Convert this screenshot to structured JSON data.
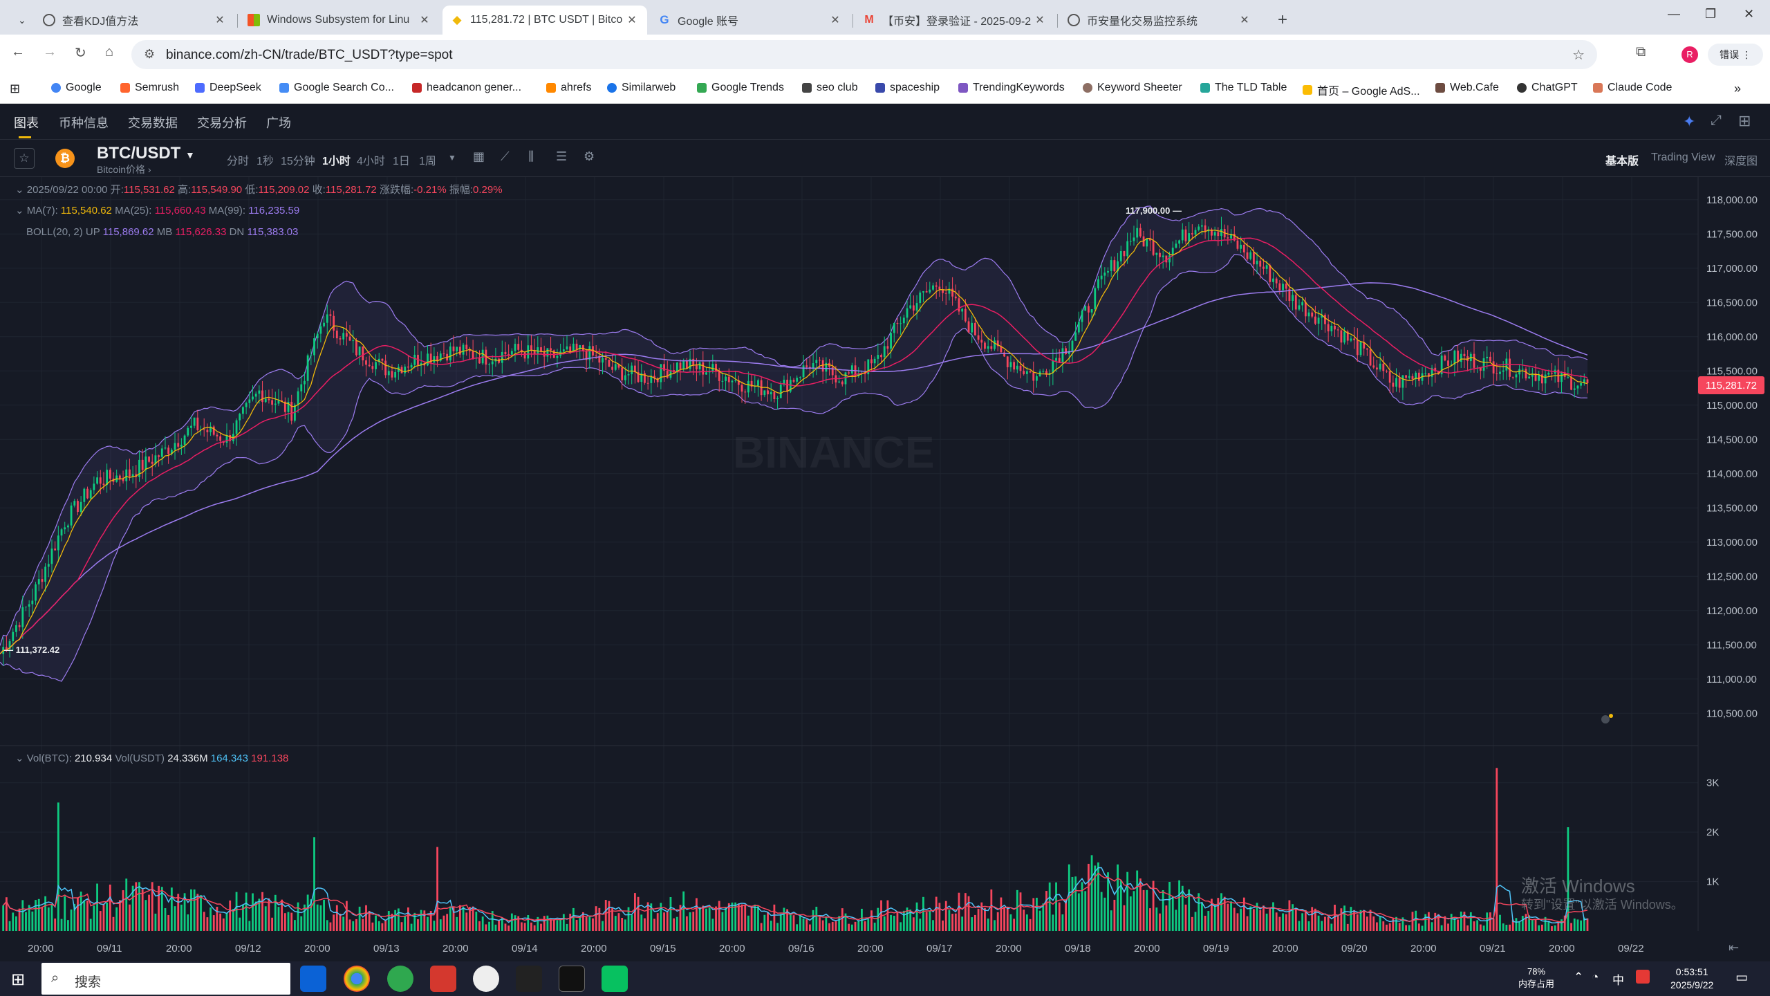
{
  "browser": {
    "tabs": [
      {
        "title": "查看KDJ值方法",
        "active": false
      },
      {
        "title": "Windows Subsystem for Linu",
        "active": false
      },
      {
        "title": "115,281.72 | BTC USDT | Bitco",
        "active": true
      },
      {
        "title": "Google 账号",
        "active": false
      },
      {
        "title": "【币安】登录验证 - 2025-09-2",
        "active": false
      },
      {
        "title": "币安量化交易监控系统",
        "active": false
      }
    ],
    "url": "binance.com/zh-CN/trade/BTC_USDT?type=spot",
    "profile_button": "错误",
    "profile_initial": "R",
    "bookmarks": [
      "Google",
      "Semrush",
      "DeepSeek",
      "Google Search Co...",
      "headcanon gener...",
      "ahrefs",
      "Similarweb",
      "Google Trends",
      "seo club",
      "spaceship",
      "TrendingKeywords",
      "Keyword Sheeter",
      "The TLD Table",
      "首页 – Google AdS...",
      "Web.Cafe",
      "ChatGPT",
      "Claude Code"
    ]
  },
  "page": {
    "nav": [
      "图表",
      "币种信息",
      "交易数据",
      "交易分析",
      "广场"
    ],
    "pair": "BTC/USDT",
    "pair_sub": "Bitcoin价格",
    "intervals": [
      "分时",
      "1秒",
      "15分钟",
      "1小时",
      "4小时",
      "1日",
      "1周"
    ],
    "active_interval": "1小时",
    "views": [
      "基本版",
      "Trading View",
      "深度图"
    ],
    "active_view": "基本版",
    "ohlc": {
      "date": "2025/09/22 00:00",
      "open_label": "开:",
      "open": "115,531.62",
      "high_label": "高:",
      "high": "115,549.90",
      "low_label": "低:",
      "low": "115,209.02",
      "close_label": "收:",
      "close": "115,281.72",
      "change_label": "涨跌幅:",
      "change": "-0.21%",
      "amp_label": "振幅:",
      "amp": "0.29%"
    },
    "ma": {
      "ma7_label": "MA(7):",
      "ma7": "115,540.62",
      "ma25_label": "MA(25):",
      "ma25": "115,660.43",
      "ma99_label": "MA(99):",
      "ma99": "116,235.59"
    },
    "boll": {
      "label": "BOLL(20, 2)",
      "up_label": "UP",
      "up": "115,869.62",
      "mb_label": "MB",
      "mb": "115,626.33",
      "dn_label": "DN",
      "dn": "115,383.03"
    },
    "vol": {
      "btc_label": "Vol(BTC):",
      "btc": "210.934",
      "usdt_label": "Vol(USDT)",
      "usdt": "24.336M",
      "ma1": "164.343",
      "ma2": "191.138"
    },
    "watermark": "BINANCE"
  },
  "chart_data": {
    "type": "candlestick",
    "interval": "1h",
    "price_axis": [
      "118,000.00",
      "117,500.00",
      "117,000.00",
      "116,500.00",
      "116,000.00",
      "115,500.00",
      "115,000.00",
      "114,500.00",
      "114,000.00",
      "113,500.00",
      "113,000.00",
      "112,500.00",
      "112,000.00",
      "111,500.00",
      "111,000.00",
      "110,500.00"
    ],
    "ylim": [
      110250,
      118250
    ],
    "current_price": "115,281.72",
    "max_label": "117,900.00",
    "min_label": "111,372.42",
    "volume_axis": [
      "3K",
      "2K",
      "1K"
    ],
    "time_axis": [
      "20:00",
      "09/11",
      "20:00",
      "09/12",
      "20:00",
      "09/13",
      "20:00",
      "09/14",
      "20:00",
      "09/15",
      "20:00",
      "09/16",
      "20:00",
      "09/17",
      "20:00",
      "09/18",
      "20:00",
      "09/19",
      "20:00",
      "09/20",
      "20:00",
      "09/21",
      "20:00",
      "09/22"
    ],
    "price_path": [
      {
        "x": 0,
        "y": 111370
      },
      {
        "x": 10,
        "y": 112200
      },
      {
        "x": 20,
        "y": 113300
      },
      {
        "x": 30,
        "y": 113900
      },
      {
        "x": 40,
        "y": 114000
      },
      {
        "x": 50,
        "y": 114300
      },
      {
        "x": 60,
        "y": 114700
      },
      {
        "x": 70,
        "y": 114500
      },
      {
        "x": 80,
        "y": 115200
      },
      {
        "x": 90,
        "y": 114900
      },
      {
        "x": 100,
        "y": 116300
      },
      {
        "x": 110,
        "y": 115800
      },
      {
        "x": 120,
        "y": 115500
      },
      {
        "x": 130,
        "y": 115700
      },
      {
        "x": 140,
        "y": 115800
      },
      {
        "x": 150,
        "y": 115700
      },
      {
        "x": 160,
        "y": 115800
      },
      {
        "x": 170,
        "y": 115700
      },
      {
        "x": 180,
        "y": 115800
      },
      {
        "x": 190,
        "y": 115500
      },
      {
        "x": 200,
        "y": 115400
      },
      {
        "x": 210,
        "y": 115600
      },
      {
        "x": 220,
        "y": 115500
      },
      {
        "x": 230,
        "y": 115300
      },
      {
        "x": 240,
        "y": 115200
      },
      {
        "x": 250,
        "y": 115600
      },
      {
        "x": 260,
        "y": 115400
      },
      {
        "x": 270,
        "y": 115600
      },
      {
        "x": 280,
        "y": 116400
      },
      {
        "x": 290,
        "y": 116800
      },
      {
        "x": 300,
        "y": 116100
      },
      {
        "x": 310,
        "y": 115700
      },
      {
        "x": 320,
        "y": 115400
      },
      {
        "x": 330,
        "y": 115900
      },
      {
        "x": 340,
        "y": 116800
      },
      {
        "x": 350,
        "y": 117500
      },
      {
        "x": 360,
        "y": 117200
      },
      {
        "x": 370,
        "y": 117700
      },
      {
        "x": 380,
        "y": 117400
      },
      {
        "x": 390,
        "y": 117000
      },
      {
        "x": 400,
        "y": 116500
      },
      {
        "x": 410,
        "y": 116200
      },
      {
        "x": 420,
        "y": 115800
      },
      {
        "x": 430,
        "y": 115300
      },
      {
        "x": 440,
        "y": 115500
      },
      {
        "x": 450,
        "y": 115700
      },
      {
        "x": 460,
        "y": 115600
      },
      {
        "x": 470,
        "y": 115500
      },
      {
        "x": 480,
        "y": 115400
      },
      {
        "x": 490,
        "y": 115300
      }
    ],
    "volume_path": [
      {
        "x": 0,
        "y": 450
      },
      {
        "x": 20,
        "y": 500
      },
      {
        "x": 40,
        "y": 700
      },
      {
        "x": 60,
        "y": 550
      },
      {
        "x": 80,
        "y": 500
      },
      {
        "x": 100,
        "y": 450
      },
      {
        "x": 120,
        "y": 300
      },
      {
        "x": 140,
        "y": 350
      },
      {
        "x": 160,
        "y": 250
      },
      {
        "x": 180,
        "y": 300
      },
      {
        "x": 200,
        "y": 600
      },
      {
        "x": 220,
        "y": 450
      },
      {
        "x": 240,
        "y": 350
      },
      {
        "x": 260,
        "y": 300
      },
      {
        "x": 280,
        "y": 450
      },
      {
        "x": 300,
        "y": 500
      },
      {
        "x": 320,
        "y": 600
      },
      {
        "x": 340,
        "y": 1100
      },
      {
        "x": 360,
        "y": 700
      },
      {
        "x": 380,
        "y": 450
      },
      {
        "x": 400,
        "y": 400
      },
      {
        "x": 420,
        "y": 300
      },
      {
        "x": 440,
        "y": 250
      },
      {
        "x": 460,
        "y": 250
      },
      {
        "x": 480,
        "y": 200
      },
      {
        "x": 490,
        "y": 200
      }
    ]
  },
  "taskbar": {
    "search": "搜索",
    "memory_pct": "78%",
    "memory_label": "内存占用",
    "ime": "中",
    "time": "0:53:51",
    "date": "2025/9/22"
  },
  "watermark_os": {
    "line1": "激活 Windows",
    "line2": "转到\"设置\"以激活 Windows。"
  },
  "colors": {
    "up": "#0ecb81",
    "down": "#f6465d",
    "ma7": "#f0b90b",
    "ma25": "#e91e63",
    "ma99": "#9c7cf0",
    "boll": "#6a5fc1",
    "bg": "#161a25"
  }
}
